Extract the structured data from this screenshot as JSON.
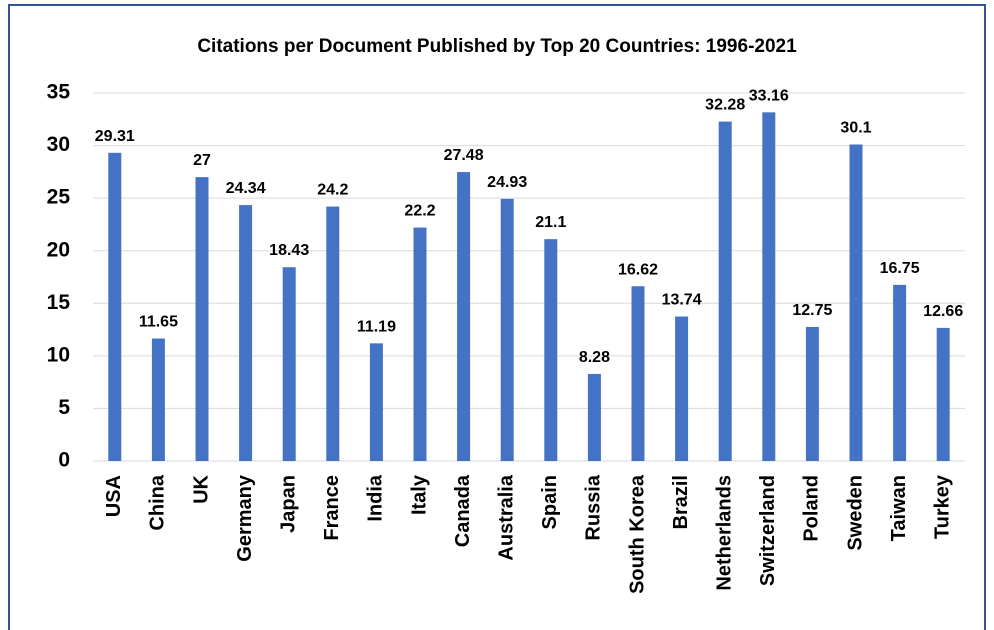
{
  "chart_data": {
    "type": "bar",
    "title": "Citations per Document Published by Top 20 Countries: 1996-2021",
    "categories": [
      "USA",
      "China",
      "UK",
      "Germany",
      "Japan",
      "France",
      "India",
      "Italy",
      "Canada",
      "Australia",
      "Spain",
      "Russia",
      "South Korea",
      "Brazil",
      "Netherlands",
      "Switzerland",
      "Poland",
      "Sweden",
      "Taiwan",
      "Turkey"
    ],
    "values": [
      29.31,
      11.65,
      27,
      24.34,
      18.43,
      24.2,
      11.19,
      22.2,
      27.48,
      24.93,
      21.1,
      8.28,
      16.62,
      13.74,
      32.28,
      33.16,
      12.75,
      30.1,
      16.75,
      12.66
    ],
    "color": "#4472c4",
    "ylim": [
      0,
      35
    ],
    "yticks": [
      0,
      5,
      10,
      15,
      20,
      25,
      30,
      35
    ],
    "grid": true
  }
}
